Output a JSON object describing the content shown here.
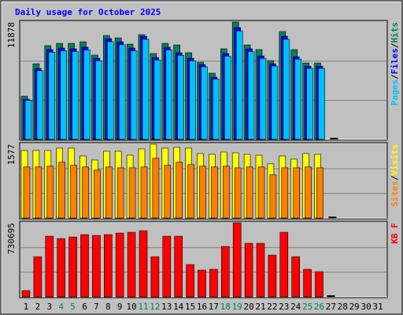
{
  "chart_data": [
    {
      "type": "bar",
      "title": "Daily usage for October 2025",
      "title_color": "#0000ff",
      "ylim": [
        0,
        11878
      ],
      "yticks": [
        11878
      ],
      "grid": true,
      "legend_separator": "/",
      "series": [
        {
          "name": "Hits",
          "color": "#00805c",
          "values": [
            4380,
            7650,
            9490,
            9720,
            9720,
            9880,
            8530,
            10520,
            10280,
            9640,
            10600,
            8690,
            9720,
            9560,
            8770,
            7810,
            6700,
            9170,
            11878,
            9560,
            9090,
            7970,
            10920,
            9090,
            7730,
            7730,
            0,
            null,
            null,
            null,
            null
          ]
        },
        {
          "name": "Files",
          "color": "#0000ff",
          "values": [
            4070,
            7170,
            9090,
            9250,
            9170,
            9330,
            8210,
            10200,
            9880,
            9250,
            10440,
            8290,
            9330,
            8770,
            8210,
            7570,
            6300,
            8690,
            11320,
            9170,
            8450,
            7650,
            10440,
            8370,
            7410,
            7410,
            0,
            null,
            null,
            null,
            null
          ]
        },
        {
          "name": "Pages",
          "color": "#00c0ff",
          "values": [
            3950,
            6950,
            8820,
            8970,
            8890,
            9050,
            7960,
            9890,
            9580,
            8970,
            10130,
            8040,
            9050,
            8510,
            7960,
            7340,
            6110,
            8430,
            10980,
            8890,
            8200,
            7420,
            10130,
            8120,
            7190,
            7190,
            0,
            null,
            null,
            null,
            null
          ]
        }
      ]
    },
    {
      "type": "bar",
      "ylim": [
        0,
        1577
      ],
      "yticks": [
        1577
      ],
      "grid": true,
      "legend_separator": "/",
      "series": [
        {
          "name": "Visits",
          "color": "#ffff00",
          "values": [
            1443,
            1443,
            1443,
            1493,
            1493,
            1325,
            1241,
            1426,
            1426,
            1342,
            1476,
            1577,
            1493,
            1510,
            1493,
            1376,
            1359,
            1409,
            1392,
            1359,
            1342,
            1158,
            1325,
            1258,
            1376,
            1359,
            0,
            null,
            null,
            null,
            null
          ]
        },
        {
          "name": "Sites",
          "color": "#ff8000",
          "values": [
            1091,
            1091,
            1108,
            1192,
            1125,
            1091,
            1024,
            1091,
            1074,
            1074,
            1091,
            1276,
            1125,
            1192,
            1142,
            1108,
            1091,
            1108,
            1074,
            1091,
            1091,
            924,
            1074,
            1074,
            1091,
            1074,
            0,
            null,
            null,
            null,
            null
          ]
        }
      ]
    },
    {
      "type": "bar",
      "ylim": [
        0,
        730695
      ],
      "yticks": [
        730695
      ],
      "grid": true,
      "categories": [
        "1",
        "2",
        "3",
        "4",
        "5",
        "6",
        "7",
        "8",
        "9",
        "10",
        "11",
        "12",
        "13",
        "14",
        "15",
        "16",
        "17",
        "18",
        "19",
        "20",
        "21",
        "22",
        "23",
        "24",
        "25",
        "26",
        "27",
        "28",
        "29",
        "30",
        "31"
      ],
      "weekends": [
        "4",
        "5",
        "11",
        "12",
        "18",
        "19",
        "25",
        "26"
      ],
      "weekend_color": "#00805c",
      "category_color": "#000000",
      "series": [
        {
          "name": "KB F",
          "color": "#ff0000",
          "values": [
            62180,
            396400,
            598500,
            575200,
            590700,
            614100,
            606300,
            614100,
            629600,
            637400,
            652900,
            396400,
            598500,
            598500,
            318700,
            264300,
            272100,
            497500,
            730695,
            528600,
            528600,
            412000,
            637400,
            396400,
            272100,
            248700,
            0,
            null,
            null,
            null,
            null
          ]
        }
      ]
    }
  ]
}
